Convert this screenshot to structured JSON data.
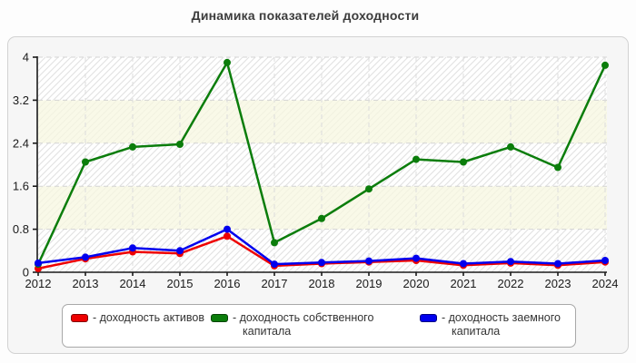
{
  "title": "Динамика показателей доходности",
  "chart_data": {
    "type": "line",
    "x": [
      "2012",
      "2013",
      "2014",
      "2015",
      "2016",
      "2017",
      "2018",
      "2019",
      "2020",
      "2021",
      "2022",
      "2023",
      "2024"
    ],
    "series": [
      {
        "name": "доходность активов",
        "color": "#ee0000",
        "values": [
          0.07,
          0.25,
          0.38,
          0.35,
          0.67,
          0.12,
          0.16,
          0.19,
          0.22,
          0.13,
          0.17,
          0.13,
          0.19
        ]
      },
      {
        "name": "доходность собственного капитала",
        "color": "#0b7d0b",
        "values": [
          0.15,
          2.05,
          2.33,
          2.38,
          3.9,
          0.55,
          1.0,
          1.55,
          2.1,
          2.05,
          2.33,
          1.95,
          3.85
        ]
      },
      {
        "name": "доходность заемного капитала",
        "color": "#0000ee",
        "values": [
          0.17,
          0.28,
          0.45,
          0.4,
          0.8,
          0.15,
          0.18,
          0.21,
          0.26,
          0.16,
          0.2,
          0.16,
          0.22
        ]
      }
    ],
    "ylim": [
      0,
      4
    ],
    "yticks": [
      "0",
      "0.8",
      "1.6",
      "2.4",
      "3.2",
      "4"
    ],
    "grid": true,
    "legend_position": "bottom"
  },
  "legend": {
    "items": [
      {
        "label": "- доходность активов",
        "color": "#ee0000"
      },
      {
        "label": "- доходность собственного капитала",
        "color": "#0b7d0b"
      },
      {
        "label": "- доходность заемного капитала",
        "color": "#0000ee"
      }
    ]
  }
}
